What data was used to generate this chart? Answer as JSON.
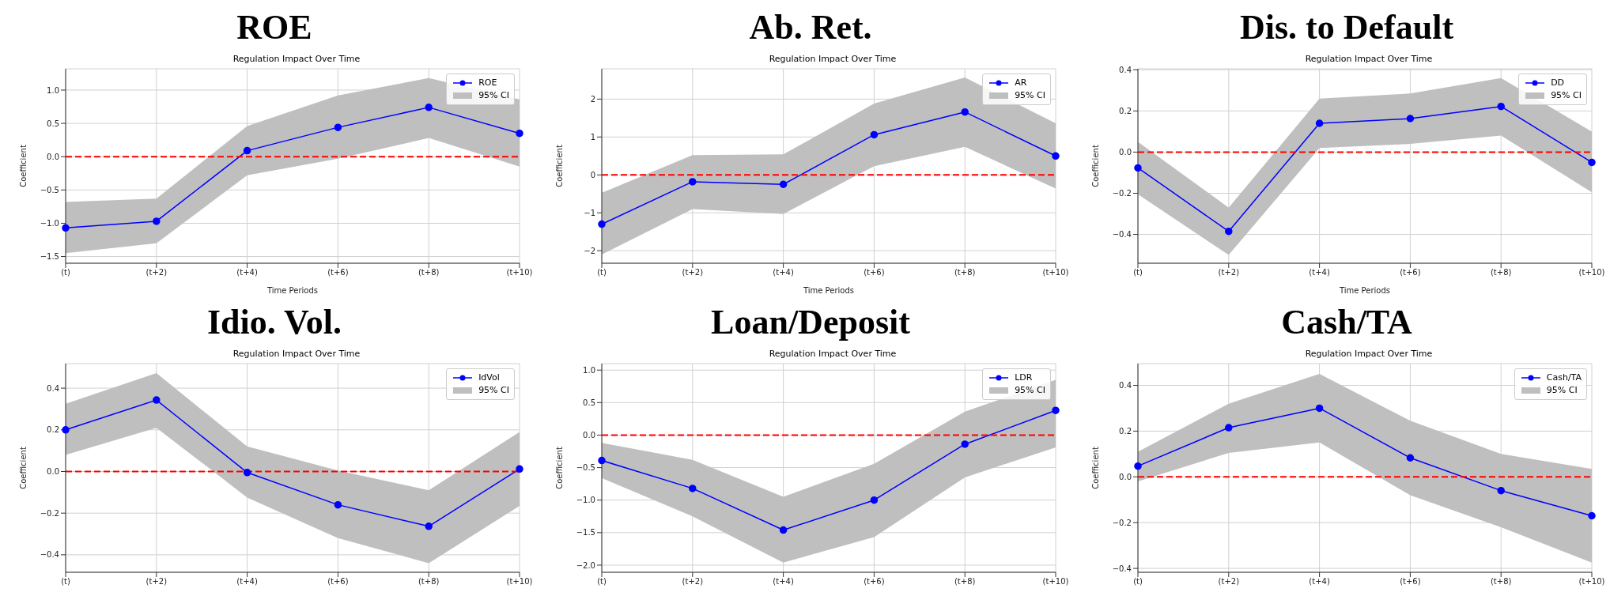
{
  "chart_data": [
    {
      "type": "line",
      "title": "ROE",
      "subtitle": "Regulation Impact Over Time",
      "xlabel": "Time Periods",
      "ylabel": "Coefficient",
      "annotations": [
        "95% CI"
      ],
      "categories": [
        "(t)",
        "(t+2)",
        "(t+4)",
        "(t+6)",
        "(t+8)",
        "(t+10)"
      ],
      "series": [
        {
          "name": "ROE",
          "color": "#0000ff",
          "values": [
            -1.07,
            -0.97,
            0.09,
            0.44,
            0.74,
            0.35
          ],
          "lower": [
            -1.45,
            -1.3,
            -0.28,
            -0.03,
            0.28,
            -0.15
          ],
          "upper": [
            -0.68,
            -0.63,
            0.46,
            0.92,
            1.18,
            0.86
          ]
        }
      ],
      "ylim": [
        -1.6,
        1.32
      ],
      "yticks": [
        {
          "value": -1.5,
          "label": "−1.5"
        },
        {
          "value": -1.0,
          "label": "−1.0"
        },
        {
          "value": -0.5,
          "label": "−0.5"
        },
        {
          "value": 0,
          "label": "0.0"
        },
        {
          "value": 0.5,
          "label": "0.5"
        },
        {
          "value": 1,
          "label": "1.0"
        }
      ],
      "grid": true,
      "legend": "top right",
      "marker": "circle",
      "ref_lines": [
        {
          "axis": "y",
          "value": 0,
          "color": "#ff0000",
          "line_style": "dashed"
        }
      ]
    },
    {
      "type": "line",
      "title": "Ab. Ret.",
      "subtitle": "Regulation Impact Over Time",
      "xlabel": "Time Periods",
      "ylabel": "Coefficient",
      "annotations": [
        "95% CI"
      ],
      "categories": [
        "(t)",
        "(t+2)",
        "(t+4)",
        "(t+6)",
        "(t+8)",
        "(t+10)"
      ],
      "series": [
        {
          "name": "AR",
          "color": "#0000ff",
          "values": [
            -1.3,
            -0.18,
            -0.25,
            1.06,
            1.66,
            0.5
          ],
          "lower": [
            -2.1,
            -0.9,
            -1.03,
            0.23,
            0.74,
            -0.36
          ],
          "upper": [
            -0.47,
            0.52,
            0.54,
            1.88,
            2.57,
            1.36
          ]
        }
      ],
      "ylim": [
        -2.33,
        2.8
      ],
      "yticks": [
        {
          "value": -2,
          "label": "−2"
        },
        {
          "value": -1,
          "label": "−1"
        },
        {
          "value": 0,
          "label": "0"
        },
        {
          "value": 1,
          "label": "1"
        },
        {
          "value": 2,
          "label": "2"
        }
      ],
      "grid": true,
      "legend": "top right",
      "marker": "circle",
      "ref_lines": [
        {
          "axis": "y",
          "value": 0,
          "color": "#ff0000",
          "line_style": "dashed"
        }
      ]
    },
    {
      "type": "line",
      "title": "Dis. to Default",
      "subtitle": "Regulation Impact Over Time",
      "xlabel": "Time Periods",
      "ylabel": "Coefficient",
      "annotations": [
        "95% CI"
      ],
      "categories": [
        "(t)",
        "(t+2)",
        "(t+4)",
        "(t+6)",
        "(t+8)",
        "(t+10)"
      ],
      "series": [
        {
          "name": "DD",
          "color": "#0000ff",
          "values": [
            -0.077,
            -0.385,
            0.14,
            0.163,
            0.222,
            -0.05
          ],
          "lower": [
            -0.205,
            -0.5,
            0.02,
            0.04,
            0.08,
            -0.195
          ],
          "upper": [
            0.05,
            -0.27,
            0.26,
            0.285,
            0.36,
            0.1
          ]
        }
      ],
      "ylim": [
        -0.54,
        0.405
      ],
      "yticks": [
        {
          "value": -0.4,
          "label": "−0.4"
        },
        {
          "value": -0.2,
          "label": "−0.2"
        },
        {
          "value": 0,
          "label": "0.0"
        },
        {
          "value": 0.2,
          "label": "0.2"
        },
        {
          "value": 0.4,
          "label": "0.4"
        }
      ],
      "grid": true,
      "legend": "top right",
      "marker": "circle",
      "ref_lines": [
        {
          "axis": "y",
          "value": 0,
          "color": "#ff0000",
          "line_style": "dashed"
        }
      ]
    },
    {
      "type": "line",
      "title": "Idio. Vol.",
      "subtitle": "Regulation Impact Over Time",
      "ylabel": "Coefficient",
      "annotations": [
        "95% CI"
      ],
      "categories": [
        "(t)",
        "(t+2)",
        "(t+4)",
        "(t+6)",
        "(t+8)",
        "(t+10)"
      ],
      "series": [
        {
          "name": "IdVol",
          "color": "#0000ff",
          "values": [
            0.2,
            0.343,
            -0.005,
            -0.16,
            -0.263,
            0.012
          ],
          "lower": [
            0.08,
            0.21,
            -0.125,
            -0.32,
            -0.44,
            -0.165
          ],
          "upper": [
            0.325,
            0.472,
            0.12,
            0.005,
            -0.09,
            0.19
          ]
        }
      ],
      "ylim": [
        -0.484,
        0.518
      ],
      "yticks": [
        {
          "value": -0.4,
          "label": "−0.4"
        },
        {
          "value": -0.2,
          "label": "−0.2"
        },
        {
          "value": 0,
          "label": "0.0"
        },
        {
          "value": 0.2,
          "label": "0.2"
        },
        {
          "value": 0.4,
          "label": "0.4"
        }
      ],
      "grid": true,
      "legend": "top right",
      "marker": "circle",
      "ref_lines": [
        {
          "axis": "y",
          "value": 0,
          "color": "#ff0000",
          "line_style": "dashed"
        }
      ]
    },
    {
      "type": "line",
      "title": "Loan/Deposit",
      "subtitle": "Regulation Impact Over Time",
      "ylabel": "Coefficient",
      "annotations": [
        "95% CI"
      ],
      "categories": [
        "(t)",
        "(t+2)",
        "(t+4)",
        "(t+6)",
        "(t+8)",
        "(t+10)"
      ],
      "series": [
        {
          "name": "LDR",
          "color": "#0000ff",
          "values": [
            -0.39,
            -0.82,
            -1.46,
            -1.0,
            -0.14,
            0.38
          ],
          "lower": [
            -0.66,
            -1.25,
            -1.96,
            -1.57,
            -0.65,
            -0.19
          ],
          "upper": [
            -0.12,
            -0.38,
            -0.95,
            -0.44,
            0.36,
            0.85
          ]
        }
      ],
      "ylim": [
        -2.11,
        1.1
      ],
      "yticks": [
        {
          "value": -2,
          "label": "−2.0"
        },
        {
          "value": -1.5,
          "label": "−1.5"
        },
        {
          "value": -1,
          "label": "−1.0"
        },
        {
          "value": -0.5,
          "label": "−0.5"
        },
        {
          "value": 0,
          "label": "0.0"
        },
        {
          "value": 0.5,
          "label": "0.5"
        },
        {
          "value": 1,
          "label": "1.0"
        }
      ],
      "grid": true,
      "legend": "top right",
      "marker": "circle",
      "ref_lines": [
        {
          "axis": "y",
          "value": 0,
          "color": "#ff0000",
          "line_style": "dashed"
        }
      ]
    },
    {
      "type": "line",
      "title": "Cash/TA",
      "subtitle": "Regulation Impact Over Time",
      "ylabel": "Coefficient",
      "annotations": [
        "95% CI"
      ],
      "categories": [
        "(t)",
        "(t+2)",
        "(t+4)",
        "(t+6)",
        "(t+8)",
        "(t+10)"
      ],
      "series": [
        {
          "name": "Cash/TA",
          "color": "#0000ff",
          "values": [
            0.047,
            0.215,
            0.3,
            0.083,
            -0.06,
            -0.17
          ],
          "lower": [
            -0.02,
            0.105,
            0.15,
            -0.08,
            -0.22,
            -0.375
          ],
          "upper": [
            0.11,
            0.32,
            0.45,
            0.245,
            0.1,
            0.035
          ]
        }
      ],
      "ylim": [
        -0.417,
        0.495
      ],
      "yticks": [
        {
          "value": -0.4,
          "label": "−0.4"
        },
        {
          "value": -0.2,
          "label": "−0.2"
        },
        {
          "value": 0,
          "label": "0.0"
        },
        {
          "value": 0.2,
          "label": "0.2"
        },
        {
          "value": 0.4,
          "label": "0.4"
        }
      ],
      "grid": true,
      "legend": "top right",
      "marker": "circle",
      "ref_lines": [
        {
          "axis": "y",
          "value": 0,
          "color": "#ff0000",
          "line_style": "dashed"
        }
      ]
    }
  ]
}
